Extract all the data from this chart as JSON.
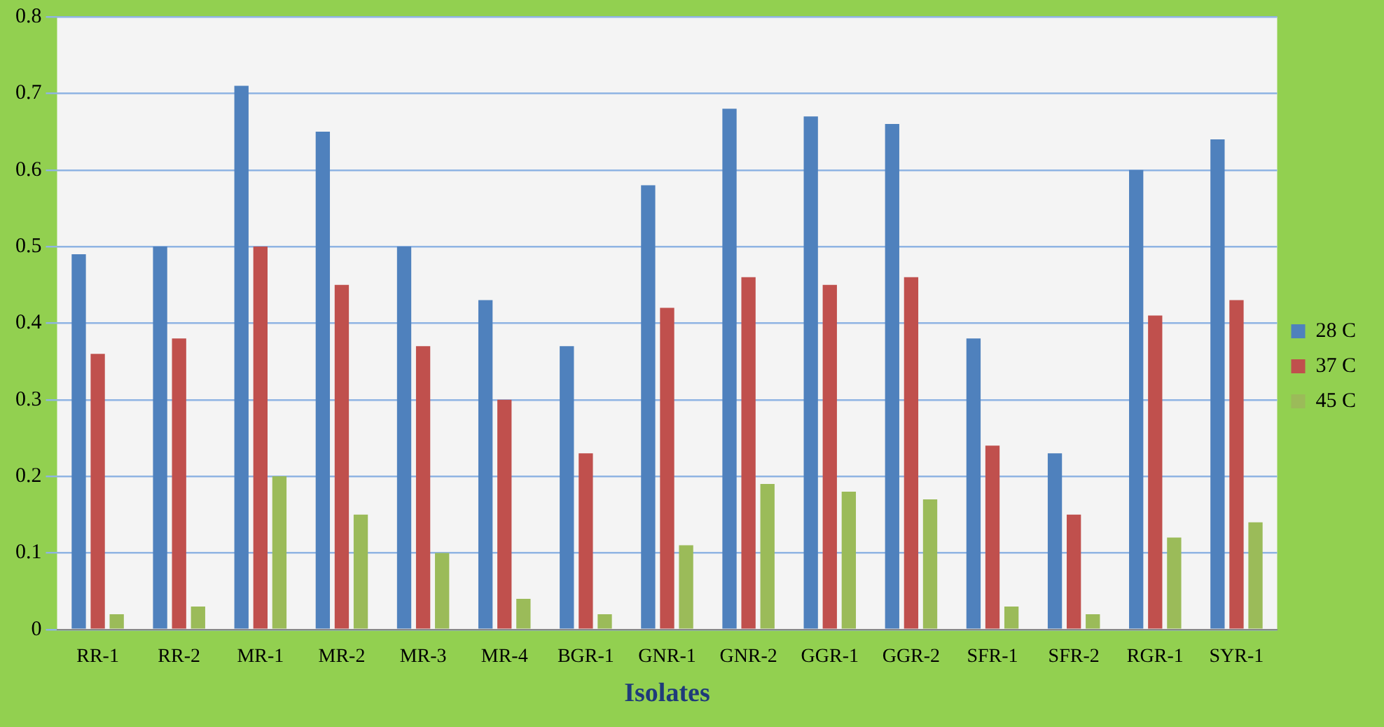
{
  "chart_data": {
    "type": "bar",
    "xlabel": "Isolates",
    "categories": [
      "RR-1",
      "RR-2",
      "MR-1",
      "MR-2",
      "MR-3",
      "MR-4",
      "BGR-1",
      "GNR-1",
      "GNR-2",
      "GGR-1",
      "GGR-2",
      "SFR-1",
      "SFR-2",
      "RGR-1",
      "SYR-1"
    ],
    "series": [
      {
        "name": "28 C",
        "color": "#4f81bd",
        "values": [
          0.49,
          0.5,
          0.71,
          0.65,
          0.5,
          0.43,
          0.37,
          0.58,
          0.68,
          0.67,
          0.66,
          0.38,
          0.23,
          0.6,
          0.64
        ]
      },
      {
        "name": "37 C",
        "color": "#c0504d",
        "values": [
          0.36,
          0.38,
          0.5,
          0.45,
          0.37,
          0.3,
          0.23,
          0.42,
          0.46,
          0.45,
          0.46,
          0.24,
          0.15,
          0.41,
          0.43
        ]
      },
      {
        "name": "45 C",
        "color": "#9bbb59",
        "values": [
          0.02,
          0.03,
          0.2,
          0.15,
          0.1,
          0.04,
          0.02,
          0.11,
          0.19,
          0.18,
          0.17,
          0.03,
          0.02,
          0.12,
          0.14
        ]
      }
    ],
    "ylim": [
      0,
      0.8
    ],
    "yticks": [
      0,
      0.1,
      0.2,
      0.3,
      0.4,
      0.5,
      0.6,
      0.7,
      0.8
    ],
    "grid": "y",
    "legend": "right"
  }
}
